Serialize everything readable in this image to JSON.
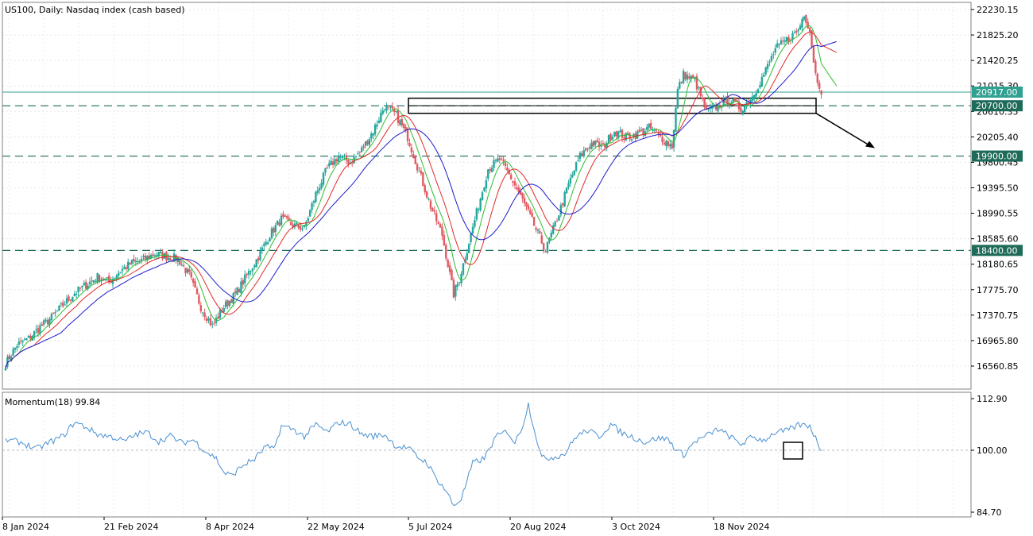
{
  "window": {
    "title": "US100, Daily:  Nasdaq index (cash based)"
  },
  "colors": {
    "bull": "#26a69a",
    "bear": "#e05a63",
    "ma_fast": "#2ebd2e",
    "ma_mid": "#e02a2a",
    "ma_slow": "#1c1ccc",
    "level_line": "#1f6b5a",
    "current_line": "#30a090",
    "momentum": "#4a90d0"
  },
  "chart_data": [
    {
      "type": "candlestick",
      "title": "US100, Daily:  Nasdaq index (cash based)",
      "symbol": "US100",
      "timeframe": "Daily",
      "x_tick_labels": [
        "8 Jan 2024",
        "21 Feb 2024",
        "8 Apr 2024",
        "22 May 2024",
        "5 Jul 2024",
        "20 Aug 2024",
        "3 Oct 2024",
        "18 Nov 2024"
      ],
      "y_tick_labels": [
        "22230.15",
        "21825.20",
        "21420.25",
        "21015.30",
        "20610.35",
        "20205.40",
        "19800.45",
        "19395.50",
        "18990.55",
        "18585.60",
        "18180.65",
        "17775.70",
        "17370.75",
        "16965.80",
        "16560.85"
      ],
      "ylim": [
        16380,
        22320
      ],
      "current_price": {
        "label": "20917.00",
        "value": 20917
      },
      "horizontal_levels": [
        {
          "label": "20700.00",
          "value": 20700,
          "style": "dashed"
        },
        {
          "label": "19900.00",
          "value": 19900,
          "style": "dashed"
        },
        {
          "label": "18400.00",
          "value": 18400,
          "style": "dashed"
        }
      ],
      "resistance_zone": {
        "from": 20580,
        "to": 20820
      },
      "projection": {
        "direction": "down",
        "target": 19900
      },
      "moving_averages": [
        "fast (green)",
        "mid (red)",
        "slow (blue)"
      ],
      "close_path": [
        [
          0,
          16600
        ],
        [
          6,
          16900
        ],
        [
          12,
          17000
        ],
        [
          18,
          17180
        ],
        [
          24,
          17330
        ],
        [
          30,
          17530
        ],
        [
          36,
          17720
        ],
        [
          42,
          17850
        ],
        [
          48,
          17980
        ],
        [
          54,
          17900
        ],
        [
          60,
          18080
        ],
        [
          66,
          18200
        ],
        [
          72,
          18250
        ],
        [
          78,
          18350
        ],
        [
          84,
          18300
        ],
        [
          90,
          18270
        ],
        [
          96,
          18000
        ],
        [
          102,
          17500
        ],
        [
          108,
          17200
        ],
        [
          114,
          17500
        ],
        [
          120,
          17700
        ],
        [
          126,
          18000
        ],
        [
          132,
          18300
        ],
        [
          138,
          18650
        ],
        [
          144,
          18900
        ],
        [
          150,
          18800
        ],
        [
          156,
          18750
        ],
        [
          162,
          19300
        ],
        [
          168,
          19700
        ],
        [
          174,
          19900
        ],
        [
          180,
          19800
        ],
        [
          186,
          20000
        ],
        [
          192,
          20300
        ],
        [
          198,
          20700
        ],
        [
          204,
          20550
        ],
        [
          210,
          20200
        ],
        [
          216,
          19650
        ],
        [
          222,
          19100
        ],
        [
          228,
          18650
        ],
        [
          234,
          17700
        ],
        [
          237,
          17950
        ],
        [
          240,
          18300
        ],
        [
          246,
          19000
        ],
        [
          252,
          19700
        ],
        [
          258,
          19850
        ],
        [
          264,
          19550
        ],
        [
          270,
          19200
        ],
        [
          276,
          18800
        ],
        [
          282,
          18400
        ],
        [
          288,
          18900
        ],
        [
          294,
          19450
        ],
        [
          300,
          19900
        ],
        [
          306,
          20100
        ],
        [
          312,
          20050
        ],
        [
          318,
          20300
        ],
        [
          324,
          20200
        ],
        [
          330,
          20250
        ],
        [
          336,
          20350
        ],
        [
          342,
          20200
        ],
        [
          348,
          20050
        ],
        [
          351,
          20950
        ],
        [
          354,
          21200
        ],
        [
          360,
          21100
        ],
        [
          366,
          20600
        ],
        [
          372,
          20700
        ],
        [
          378,
          20800
        ],
        [
          384,
          20650
        ],
        [
          390,
          20850
        ],
        [
          396,
          21200
        ],
        [
          402,
          21600
        ],
        [
          408,
          21750
        ],
        [
          414,
          21900
        ],
        [
          417,
          22170
        ],
        [
          420,
          21900
        ],
        [
          423,
          21200
        ],
        [
          426,
          20950
        ]
      ],
      "momentum": {
        "label": "Momentum(18) 99.84",
        "period": 18,
        "current": 99.84,
        "y_tick_labels": [
          "112.90",
          "100.00",
          "84.70"
        ],
        "ylim": [
          83.5,
          114.5
        ],
        "path": [
          [
            0,
            102.6
          ],
          [
            8,
            102.0
          ],
          [
            16,
            100.3
          ],
          [
            24,
            102.2
          ],
          [
            30,
            103.5
          ],
          [
            36,
            107.0
          ],
          [
            42,
            105.8
          ],
          [
            48,
            104.0
          ],
          [
            56,
            103.3
          ],
          [
            62,
            102.2
          ],
          [
            68,
            103.9
          ],
          [
            74,
            104.5
          ],
          [
            80,
            102.2
          ],
          [
            86,
            103.6
          ],
          [
            92,
            101.8
          ],
          [
            98,
            102.6
          ],
          [
            104,
            99.9
          ],
          [
            110,
            98.0
          ],
          [
            114,
            94.5
          ],
          [
            118,
            93.7
          ],
          [
            124,
            96.3
          ],
          [
            130,
            97.8
          ],
          [
            136,
            101.0
          ],
          [
            140,
            100.0
          ],
          [
            144,
            106.0
          ],
          [
            150,
            105.3
          ],
          [
            156,
            103.4
          ],
          [
            162,
            106.4
          ],
          [
            168,
            104.5
          ],
          [
            174,
            107.0
          ],
          [
            180,
            106.5
          ],
          [
            186,
            104.0
          ],
          [
            192,
            103.5
          ],
          [
            198,
            103.9
          ],
          [
            204,
            101.0
          ],
          [
            210,
            100.6
          ],
          [
            216,
            98.0
          ],
          [
            220,
            97.0
          ],
          [
            224,
            93.7
          ],
          [
            230,
            90.0
          ],
          [
            234,
            86.3
          ],
          [
            238,
            88.0
          ],
          [
            244,
            96.8
          ],
          [
            250,
            98.0
          ],
          [
            256,
            103.3
          ],
          [
            262,
            104.8
          ],
          [
            266,
            101.8
          ],
          [
            270,
            106.2
          ],
          [
            273,
            111.5
          ],
          [
            276,
            105.5
          ],
          [
            280,
            98.0
          ],
          [
            286,
            98.3
          ],
          [
            292,
            99.1
          ],
          [
            298,
            103.5
          ],
          [
            304,
            105.0
          ],
          [
            310,
            103.4
          ],
          [
            316,
            106.5
          ],
          [
            322,
            104.3
          ],
          [
            328,
            103.2
          ],
          [
            334,
            102.0
          ],
          [
            340,
            103.0
          ],
          [
            346,
            102.8
          ],
          [
            350,
            100.2
          ],
          [
            354,
            98.8
          ],
          [
            360,
            102.2
          ],
          [
            366,
            103.6
          ],
          [
            372,
            105.3
          ],
          [
            378,
            103.5
          ],
          [
            384,
            101.5
          ],
          [
            390,
            103.3
          ],
          [
            396,
            102.5
          ],
          [
            402,
            104.5
          ],
          [
            408,
            104.8
          ],
          [
            414,
            106.3
          ],
          [
            420,
            106.2
          ],
          [
            424,
            102.0
          ],
          [
            426,
            99.84
          ]
        ]
      }
    }
  ]
}
